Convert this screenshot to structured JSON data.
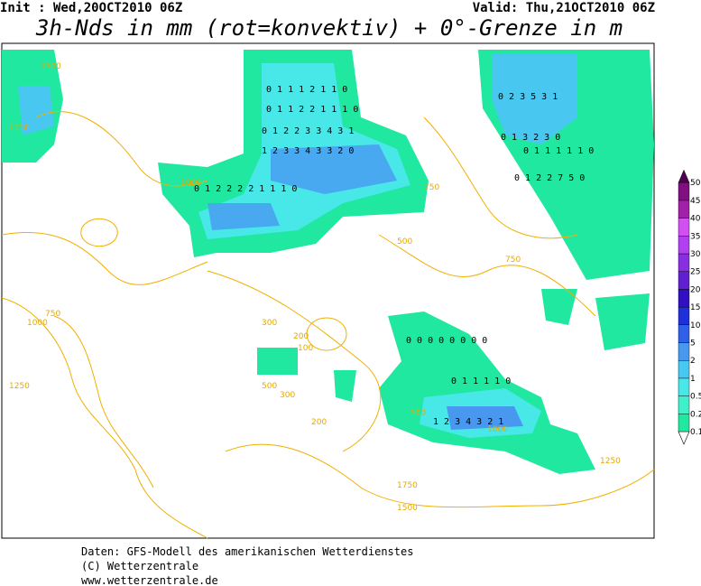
{
  "header": {
    "init": "Init : Wed,20OCT2010 06Z",
    "valid": "Valid: Thu,21OCT2010 06Z",
    "title": "3h-Nds in mm (rot=konvektiv) + 0°-Grenze in m"
  },
  "colorbar": {
    "levels": [
      0.1,
      0.2,
      0.5,
      1,
      2,
      5,
      10,
      15,
      20,
      25,
      30,
      35,
      40,
      45,
      50
    ],
    "colors": [
      "#20e8a0",
      "#40f0c8",
      "#48e8e8",
      "#48c8f0",
      "#4898f0",
      "#3060e8",
      "#2030d8",
      "#3010c0",
      "#6020d0",
      "#8830e0",
      "#b040f0",
      "#d050f0",
      "#a020a8",
      "#801080",
      "#500050"
    ]
  },
  "map": {
    "contour_labels": [
      "1500",
      "1250",
      "1000",
      "750",
      "500",
      "300",
      "200",
      "100",
      "750",
      "1000",
      "1250",
      "500",
      "300",
      "200",
      "750",
      "1750",
      "1500",
      "1250",
      "1000",
      "500"
    ],
    "precip_rows": [
      "0 1 1 1 2 1 1 0",
      "0 1 1 2 2 1 1 1 0",
      "0 1 2 2 3 3 4 3 1",
      "1 2 3 3 4 3 3 2 0",
      "0 1 2 2 2 2 1 1 1 0",
      "0 2 3 5 3 1",
      "0 1 3 2 3 0",
      "0 1 1 1 1 1 0",
      "0 1 2 2 7 5 0",
      "1 2 3 4 3 2 1",
      "0 0 0 0 0 0 0 0",
      "0 1 1 1 1 0"
    ]
  },
  "footer": {
    "line1": "Daten: GFS-Modell des amerikanischen Wetterdienstes",
    "line2": "(C) Wetterzentrale",
    "line3": "www.wetterzentrale.de"
  }
}
